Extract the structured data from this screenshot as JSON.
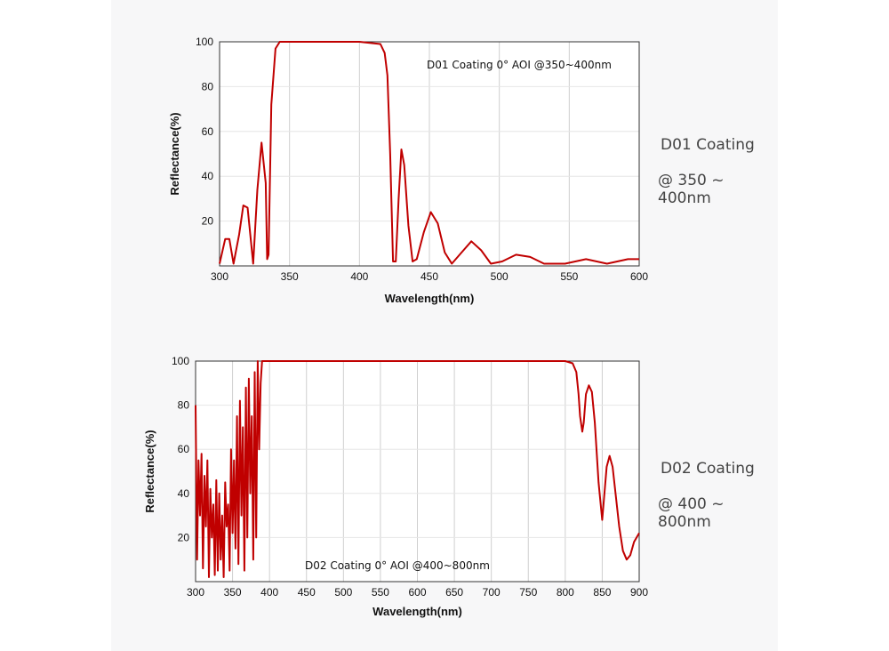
{
  "colors": {
    "curve": "#c00000",
    "grid": "#cfcfcf",
    "panel": "#f7f7f8"
  },
  "side_labels": {
    "d01_title": "D01 Coating",
    "d01_range": "@ 350 ~ 400nm",
    "d02_title": "D02 Coating",
    "d02_range": "@ 400 ~ 800nm"
  },
  "chart_data": [
    {
      "type": "line",
      "title": "",
      "annotation": "D01 Coating  0°  AOI @350~400nm",
      "xlabel": "Wavelength(nm)",
      "ylabel": "Reflectance(%)",
      "xlim": [
        300,
        600
      ],
      "ylim": [
        0,
        100
      ],
      "xticks": [
        300,
        350,
        400,
        450,
        500,
        550,
        600
      ],
      "yticks": [
        20,
        40,
        60,
        80,
        100
      ],
      "grid": true,
      "series": [
        {
          "x": [
            300,
            304,
            307,
            310,
            314,
            317,
            320,
            324,
            327,
            330,
            333,
            334,
            335,
            337,
            340,
            343,
            350,
            380,
            400,
            415,
            418,
            420,
            422,
            424,
            426,
            428,
            430,
            432,
            435,
            438,
            441,
            446,
            451,
            456,
            461,
            466,
            473,
            480,
            487,
            494,
            502,
            512,
            522,
            532,
            547,
            562,
            577,
            592,
            600
          ],
          "y": [
            1,
            12,
            12,
            1,
            14,
            27,
            26,
            1,
            34,
            55,
            37,
            3,
            5,
            72,
            97,
            100,
            100,
            100,
            100,
            99,
            95,
            85,
            50,
            2,
            2,
            30,
            52,
            45,
            18,
            2,
            3,
            15,
            24,
            19,
            6,
            1,
            6,
            11,
            7,
            1,
            2,
            5,
            4,
            1,
            1,
            3,
            1,
            3,
            3
          ]
        }
      ]
    },
    {
      "type": "line",
      "title": "",
      "annotation": "D02 Coating  0°  AOI @400~800nm",
      "xlabel": "Wavelength(nm)",
      "ylabel": "Reflectance(%)",
      "xlim": [
        300,
        900
      ],
      "ylim": [
        0,
        100
      ],
      "xticks": [
        300,
        350,
        400,
        450,
        500,
        550,
        600,
        650,
        700,
        750,
        800,
        850,
        900
      ],
      "yticks": [
        20,
        40,
        60,
        80,
        100
      ],
      "grid": true,
      "series": [
        {
          "x": [
            300,
            302,
            304,
            306,
            308,
            310,
            312,
            314,
            316,
            318,
            320,
            322,
            324,
            326,
            328,
            330,
            332,
            334,
            336,
            338,
            340,
            342,
            344,
            346,
            348,
            350,
            352,
            354,
            356,
            358,
            360,
            362,
            364,
            366,
            368,
            370,
            372,
            374,
            376,
            378,
            380,
            382,
            384,
            386,
            388,
            390,
            392,
            394,
            396,
            400,
            450,
            500,
            550,
            600,
            650,
            700,
            750,
            800,
            810,
            815,
            818,
            820,
            823,
            825,
            828,
            832,
            836,
            840,
            845,
            850,
            853,
            856,
            860,
            864,
            868,
            873,
            878,
            883,
            888,
            893,
            900
          ],
          "y": [
            80,
            10,
            55,
            30,
            58,
            6,
            48,
            25,
            55,
            2,
            42,
            20,
            35,
            3,
            46,
            5,
            40,
            10,
            30,
            2,
            45,
            25,
            35,
            5,
            60,
            22,
            55,
            15,
            75,
            8,
            82,
            30,
            70,
            5,
            88,
            20,
            92,
            40,
            75,
            10,
            95,
            20,
            100,
            60,
            90,
            100,
            100,
            100,
            100,
            100,
            100,
            100,
            100,
            100,
            100,
            100,
            100,
            100,
            99,
            95,
            85,
            75,
            68,
            72,
            85,
            89,
            86,
            72,
            45,
            28,
            40,
            52,
            57,
            52,
            40,
            25,
            14,
            10,
            12,
            18,
            22
          ]
        }
      ]
    }
  ]
}
